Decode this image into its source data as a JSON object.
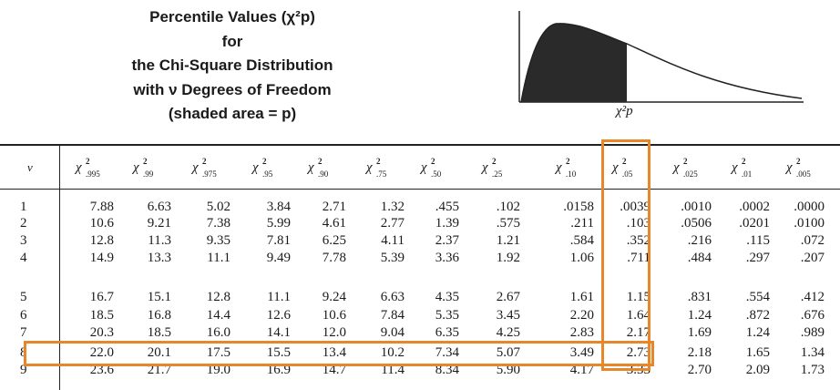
{
  "title_lines": [
    "Percentile Values (χ²p)",
    "for",
    "the Chi-Square Distribution",
    "with ν Degrees of Freedom",
    "(shaded area = p)"
  ],
  "curve_label": "χ²p",
  "header": {
    "nu_label": "ν",
    "columns": [
      ".995",
      ".99",
      ".975",
      ".95",
      ".90",
      ".75",
      ".50",
      ".25",
      ".10",
      ".05",
      ".025",
      ".01",
      ".005"
    ]
  },
  "rows": [
    {
      "nu": "1",
      "values": [
        "7.88",
        "6.63",
        "5.02",
        "3.84",
        "2.71",
        "1.32",
        ".455",
        ".102",
        ".0158",
        ".0039",
        ".0010",
        ".0002",
        ".0000"
      ]
    },
    {
      "nu": "2",
      "values": [
        "10.6",
        "9.21",
        "7.38",
        "5.99",
        "4.61",
        "2.77",
        "1.39",
        ".575",
        ".211",
        ".103",
        ".0506",
        ".0201",
        ".0100"
      ]
    },
    {
      "nu": "3",
      "values": [
        "12.8",
        "11.3",
        "9.35",
        "7.81",
        "6.25",
        "4.11",
        "2.37",
        "1.21",
        ".584",
        ".352",
        ".216",
        ".115",
        ".072"
      ]
    },
    {
      "nu": "4",
      "values": [
        "14.9",
        "13.3",
        "11.1",
        "9.49",
        "7.78",
        "5.39",
        "3.36",
        "1.92",
        "1.06",
        ".711",
        ".484",
        ".297",
        ".207"
      ]
    },
    {
      "nu": "5",
      "values": [
        "16.7",
        "15.1",
        "12.8",
        "11.1",
        "9.24",
        "6.63",
        "4.35",
        "2.67",
        "1.61",
        "1.15",
        ".831",
        ".554",
        ".412"
      ]
    },
    {
      "nu": "6",
      "values": [
        "18.5",
        "16.8",
        "14.4",
        "12.6",
        "10.6",
        "7.84",
        "5.35",
        "3.45",
        "2.20",
        "1.64",
        "1.24",
        ".872",
        ".676"
      ]
    },
    {
      "nu": "7",
      "values": [
        "20.3",
        "18.5",
        "16.0",
        "14.1",
        "12.0",
        "9.04",
        "6.35",
        "4.25",
        "2.83",
        "2.17",
        "1.69",
        "1.24",
        ".989"
      ]
    },
    {
      "nu": "8",
      "values": [
        "22.0",
        "20.1",
        "17.5",
        "15.5",
        "13.4",
        "10.2",
        "7.34",
        "5.07",
        "3.49",
        "2.73",
        "2.18",
        "1.65",
        "1.34"
      ]
    },
    {
      "nu": "9",
      "values": [
        "23.6",
        "21.7",
        "19.0",
        "16.9",
        "14.7",
        "11.4",
        "8.34",
        "5.90",
        "4.17",
        "3.33",
        "2.70",
        "2.09",
        "1.73"
      ]
    }
  ],
  "highlight": {
    "column": ".05",
    "row_nu": "8",
    "color": "#e8862a"
  }
}
